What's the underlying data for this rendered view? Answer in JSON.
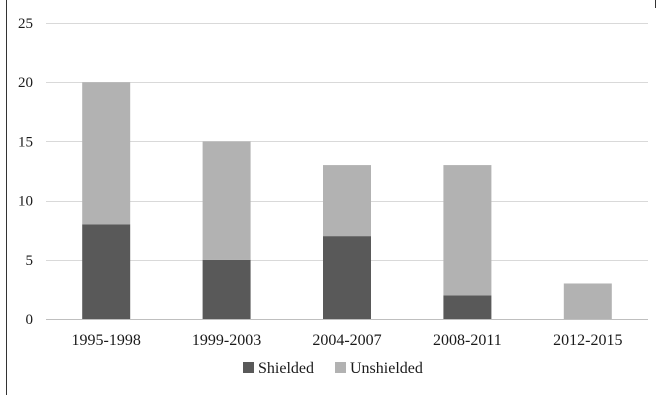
{
  "chart_data": {
    "type": "bar",
    "stacked": true,
    "title": "",
    "xlabel": "",
    "ylabel": "",
    "categories": [
      "1995-1998",
      "1999-2003",
      "2004-2007",
      "2008-2011",
      "2012-2015"
    ],
    "series": [
      {
        "name": "Shielded",
        "values": [
          8,
          5,
          7,
          2,
          0
        ],
        "color": "#595959"
      },
      {
        "name": "Unshielded",
        "values": [
          12,
          10,
          6,
          11,
          3
        ],
        "color": "#b2b2b2"
      }
    ],
    "ylim": [
      0,
      25
    ],
    "yticks": [
      0,
      5,
      10,
      15,
      20,
      25
    ],
    "grid": true,
    "legend_position": "bottom-center"
  }
}
